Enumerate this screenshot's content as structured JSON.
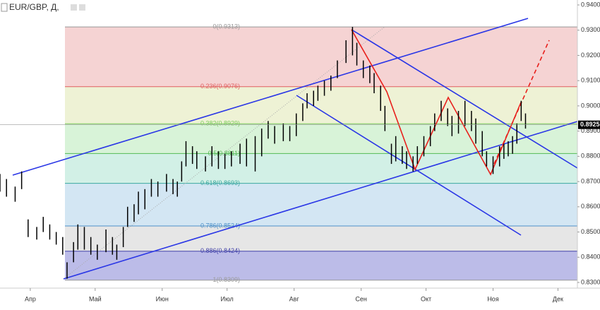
{
  "chart_data": {
    "type": "ohlc",
    "title": "EUR/GBP, Д,",
    "xlim": [
      77,
      344
    ],
    "xticks": [
      {
        "value": 91,
        "label": "Апр"
      },
      {
        "value": 121,
        "label": "Май"
      },
      {
        "value": 152,
        "label": "Июн"
      },
      {
        "value": 182,
        "label": "Июл"
      },
      {
        "value": 213,
        "label": "Авг"
      },
      {
        "value": 244,
        "label": "Сен"
      },
      {
        "value": 274,
        "label": "Окт"
      },
      {
        "value": 305,
        "label": "Ноя"
      },
      {
        "value": 335,
        "label": "Дек"
      }
    ],
    "ylim": [
      0.83,
      0.94
    ],
    "yticks": [
      {
        "value": 0.83,
        "label": "0.8300"
      },
      {
        "value": 0.84,
        "label": "0.8400"
      },
      {
        "value": 0.85,
        "label": "0.8500"
      },
      {
        "value": 0.86,
        "label": "0.8600"
      },
      {
        "value": 0.87,
        "label": "0.8700"
      },
      {
        "value": 0.88,
        "label": "0.8800"
      },
      {
        "value": 0.89,
        "label": "0.8900"
      },
      {
        "value": 0.9,
        "label": "0.9000"
      },
      {
        "value": 0.91,
        "label": "0.9100"
      },
      {
        "value": 0.92,
        "label": "0.9200"
      },
      {
        "value": 0.93,
        "label": "0.9300"
      },
      {
        "value": 0.94,
        "label": "0.9400"
      }
    ],
    "last_price": 0.8925,
    "bar_color": "#000000",
    "x": [
      77,
      80,
      84,
      87,
      90,
      94,
      97,
      100,
      103,
      106,
      108,
      111,
      113,
      116,
      119,
      122,
      126,
      129,
      131,
      134,
      136,
      139,
      141,
      144,
      147,
      150,
      154,
      157,
      159,
      161,
      163,
      166,
      168,
      172,
      175,
      178,
      181,
      184,
      188,
      191,
      195,
      198,
      201,
      204,
      208,
      211,
      214,
      217,
      219,
      222,
      224,
      227,
      230,
      233,
      237,
      240,
      242,
      245,
      248,
      250,
      253,
      255,
      258,
      260,
      263,
      265,
      268,
      270,
      273,
      276,
      278,
      281,
      284,
      286,
      289,
      292,
      295,
      297,
      300,
      302,
      305,
      308,
      310,
      312,
      314,
      316,
      318,
      320
    ],
    "high": [
      0.873,
      0.871,
      0.868,
      0.874,
      0.855,
      0.852,
      0.856,
      0.853,
      0.85,
      0.848,
      0.838,
      0.846,
      0.853,
      0.852,
      0.848,
      0.845,
      0.851,
      0.848,
      0.845,
      0.852,
      0.86,
      0.861,
      0.866,
      0.867,
      0.871,
      0.87,
      0.873,
      0.871,
      0.87,
      0.878,
      0.886,
      0.884,
      0.882,
      0.88,
      0.884,
      0.882,
      0.881,
      0.882,
      0.885,
      0.887,
      0.888,
      0.891,
      0.894,
      0.892,
      0.893,
      0.892,
      0.897,
      0.901,
      0.905,
      0.906,
      0.908,
      0.91,
      0.912,
      0.918,
      0.926,
      0.9313,
      0.925,
      0.918,
      0.916,
      0.913,
      0.908,
      0.9,
      0.885,
      0.888,
      0.884,
      0.882,
      0.88,
      0.884,
      0.888,
      0.892,
      0.897,
      0.902,
      0.899,
      0.896,
      0.898,
      0.902,
      0.898,
      0.895,
      0.89,
      0.882,
      0.88,
      0.884,
      0.885,
      0.886,
      0.888,
      0.893,
      0.902,
      0.897
    ],
    "low": [
      0.866,
      0.864,
      0.862,
      0.867,
      0.848,
      0.847,
      0.85,
      0.847,
      0.845,
      0.841,
      0.8315,
      0.838,
      0.843,
      0.843,
      0.841,
      0.839,
      0.842,
      0.841,
      0.839,
      0.844,
      0.852,
      0.854,
      0.857,
      0.859,
      0.864,
      0.864,
      0.866,
      0.865,
      0.864,
      0.87,
      0.876,
      0.877,
      0.875,
      0.874,
      0.876,
      0.875,
      0.875,
      0.876,
      0.877,
      0.876,
      0.874,
      0.88,
      0.887,
      0.885,
      0.886,
      0.886,
      0.888,
      0.894,
      0.899,
      0.9,
      0.902,
      0.904,
      0.906,
      0.911,
      0.917,
      0.92,
      0.916,
      0.911,
      0.909,
      0.905,
      0.898,
      0.89,
      0.877,
      0.878,
      0.877,
      0.875,
      0.874,
      0.877,
      0.88,
      0.884,
      0.89,
      0.894,
      0.892,
      0.888,
      0.889,
      0.892,
      0.89,
      0.885,
      0.88,
      0.876,
      0.873,
      0.876,
      0.879,
      0.88,
      0.881,
      0.885,
      0.894,
      0.891
    ],
    "fib_levels": [
      {
        "label": "0(0.9313)",
        "value": 0.9313,
        "color": "#999999",
        "fill": "#f5d3d3"
      },
      {
        "label": "0.236(0.9076)",
        "value": 0.9076,
        "color": "#e06060",
        "fill": "#eef2d5"
      },
      {
        "label": "0.382(0.8929)",
        "value": 0.8929,
        "color": "#7ecb5f",
        "fill": "#d8f3d8"
      },
      {
        "label": "0.5(0.8811)",
        "value": 0.8811,
        "color": "#55bb55",
        "fill": "#d2f0e6"
      },
      {
        "label": "0.618(0.8693)",
        "value": 0.8693,
        "color": "#3aa8a0",
        "fill": "#d3e6f3"
      },
      {
        "label": "0.786(0.8524)",
        "value": 0.8524,
        "color": "#4d90c8",
        "fill": "#e6e6e6"
      },
      {
        "label": "0.886(0.8424)",
        "value": 0.8424,
        "color": "#4040a8",
        "fill": "#bcbce8"
      },
      {
        "label": "1(0.8309)",
        "value": 0.8309,
        "color": "#999999",
        "fill": "none"
      }
    ]
  }
}
